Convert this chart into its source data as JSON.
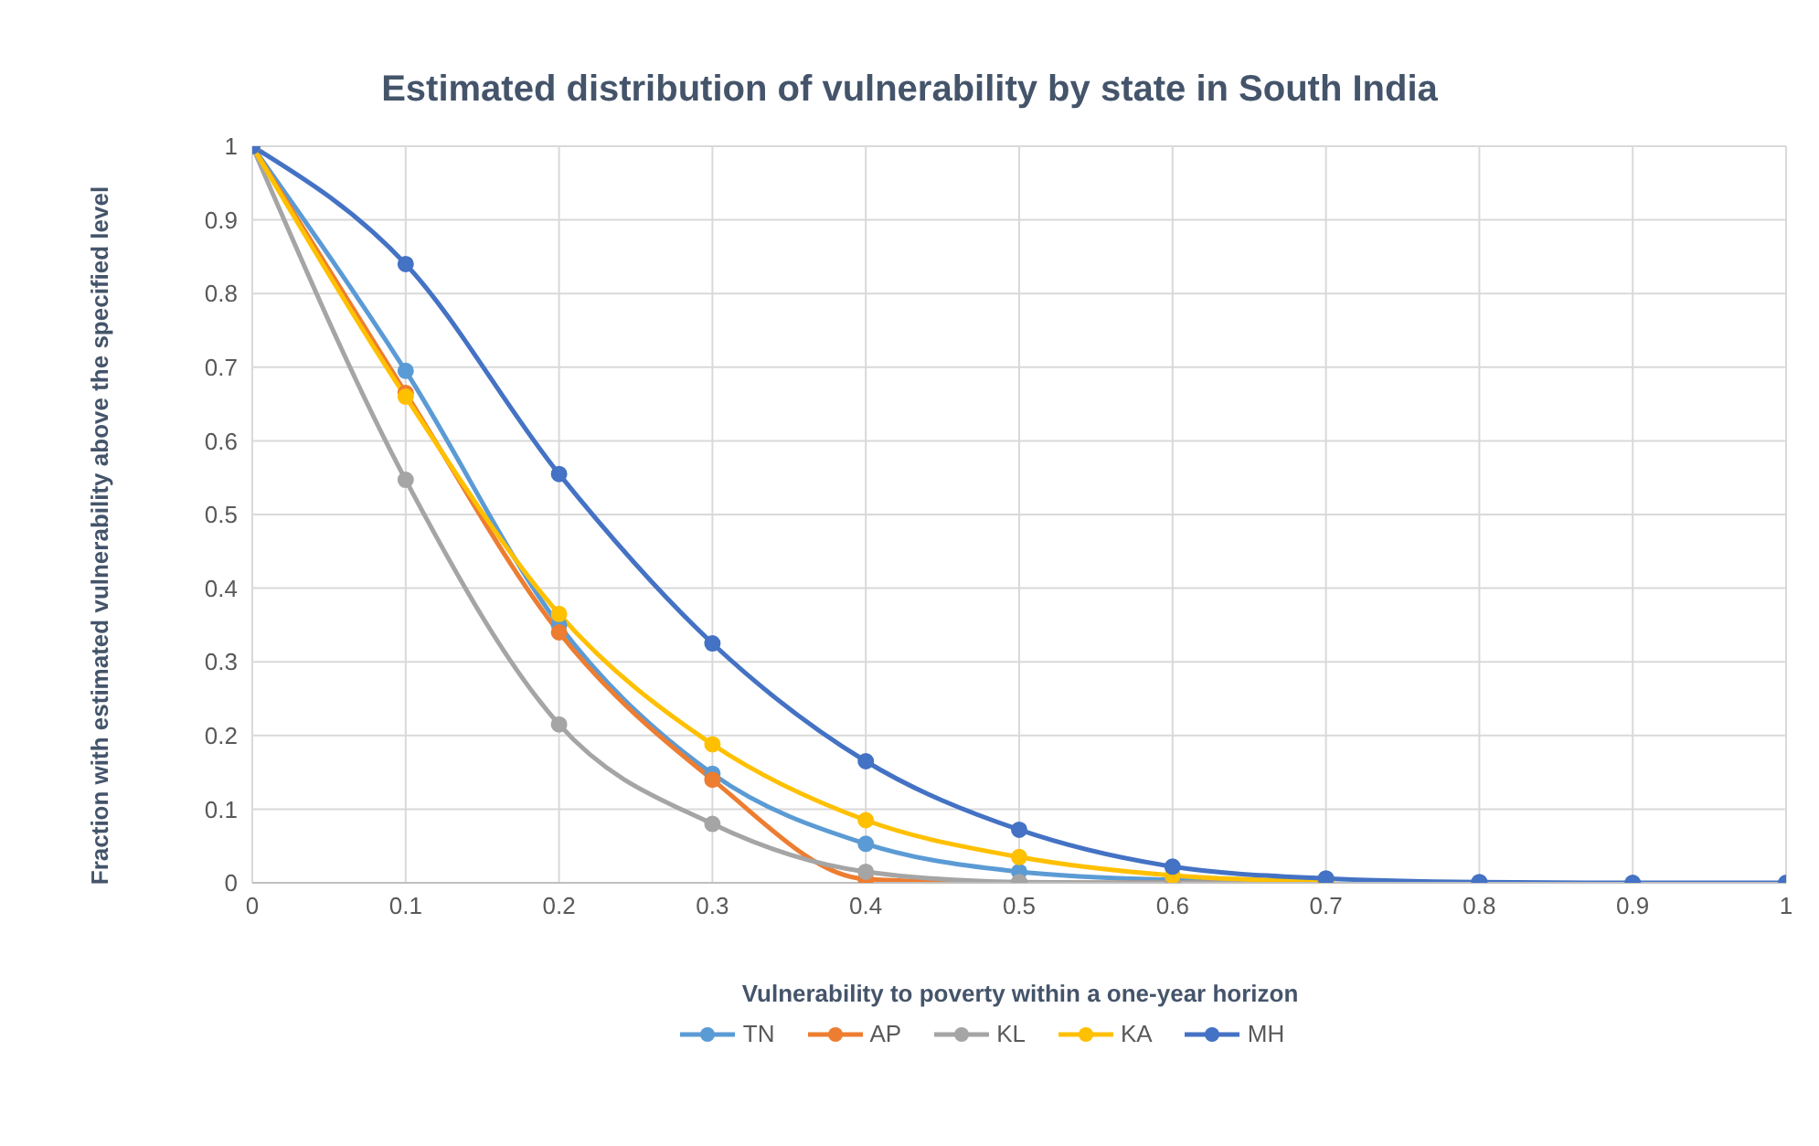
{
  "chart_data": {
    "type": "line",
    "title": "Estimated distribution of vulnerability by state in South India",
    "xlabel": "Vulnerability to poverty within a one-year horizon",
    "ylabel": "Fraction with estimated vulnerability above the specified level",
    "xlim": [
      0,
      1
    ],
    "xticks": [
      0,
      0.1,
      0.2,
      0.3,
      0.4,
      0.5,
      0.6,
      0.7,
      0.8,
      0.9,
      1
    ],
    "ylim": [
      0,
      1
    ],
    "yticks": [
      0,
      0.1,
      0.2,
      0.3,
      0.4,
      0.5,
      0.6,
      0.7,
      0.8,
      0.9,
      1
    ],
    "grid": true,
    "legend": "bottom",
    "marker": "circle",
    "line_style": "solid",
    "series": [
      {
        "name": "TN",
        "color": "#5b9bd5",
        "x": [
          0,
          0.1,
          0.2,
          0.3,
          0.4,
          0.5,
          0.6,
          0.7
        ],
        "values": [
          1,
          0.695,
          0.35,
          0.148,
          0.053,
          0.015,
          0.004,
          0.001
        ]
      },
      {
        "name": "AP",
        "color": "#ed7d31",
        "x": [
          0,
          0.1,
          0.2,
          0.3,
          0.4,
          0.5,
          0.6,
          0.7
        ],
        "values": [
          1,
          0.665,
          0.34,
          0.14,
          0.005,
          0,
          0,
          0
        ]
      },
      {
        "name": "KL",
        "color": "#a5a5a5",
        "x": [
          0,
          0.1,
          0.2,
          0.3,
          0.4,
          0.5,
          0.6,
          0.7
        ],
        "values": [
          1,
          0.547,
          0.215,
          0.08,
          0.015,
          0.001,
          0,
          0
        ]
      },
      {
        "name": "KA",
        "color": "#ffc000",
        "x": [
          0,
          0.1,
          0.2,
          0.3,
          0.4,
          0.5,
          0.6,
          0.7
        ],
        "values": [
          1,
          0.66,
          0.365,
          0.188,
          0.085,
          0.035,
          0.01,
          0.002
        ]
      },
      {
        "name": "MH",
        "color": "#4472c4",
        "x": [
          0,
          0.1,
          0.2,
          0.3,
          0.4,
          0.5,
          0.6,
          0.7,
          0.8,
          0.9,
          1
        ],
        "values": [
          1,
          0.84,
          0.555,
          0.325,
          0.165,
          0.072,
          0.022,
          0.006,
          0.001,
          0,
          0
        ]
      }
    ]
  }
}
